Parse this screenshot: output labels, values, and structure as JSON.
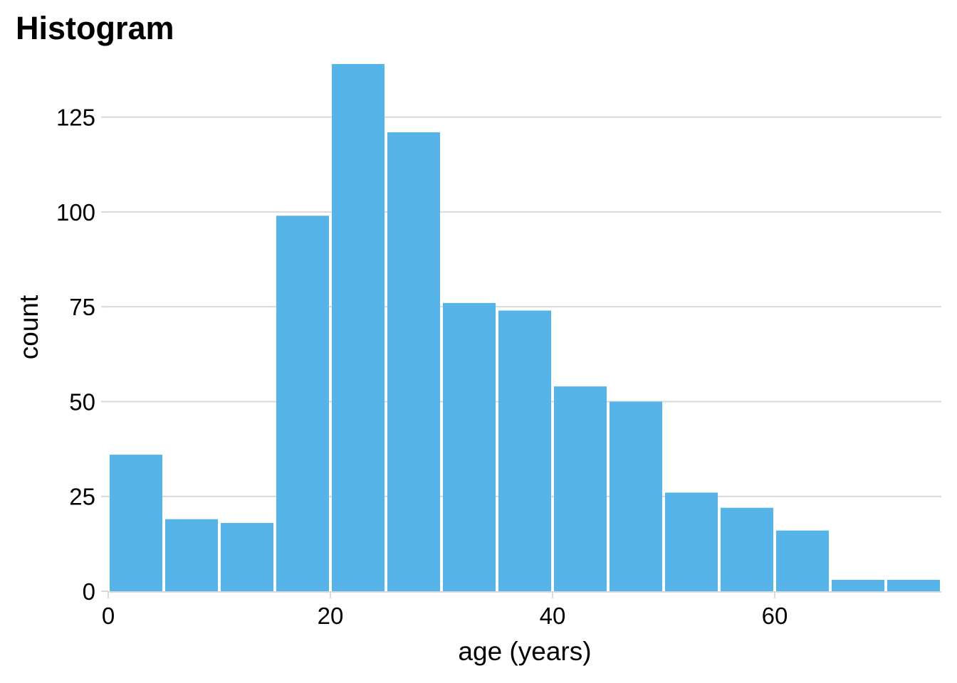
{
  "chart_data": {
    "type": "bar",
    "title": "Histogram",
    "xlabel": "age (years)",
    "ylabel": "count",
    "bin_width": 5,
    "bins": [
      {
        "x0": 0,
        "x1": 5,
        "count": 36
      },
      {
        "x0": 5,
        "x1": 10,
        "count": 19
      },
      {
        "x0": 10,
        "x1": 15,
        "count": 18
      },
      {
        "x0": 15,
        "x1": 20,
        "count": 99
      },
      {
        "x0": 20,
        "x1": 25,
        "count": 139
      },
      {
        "x0": 25,
        "x1": 30,
        "count": 121
      },
      {
        "x0": 30,
        "x1": 35,
        "count": 76
      },
      {
        "x0": 35,
        "x1": 40,
        "count": 74
      },
      {
        "x0": 40,
        "x1": 45,
        "count": 54
      },
      {
        "x0": 45,
        "x1": 50,
        "count": 50
      },
      {
        "x0": 50,
        "x1": 55,
        "count": 26
      },
      {
        "x0": 55,
        "x1": 60,
        "count": 22
      },
      {
        "x0": 60,
        "x1": 65,
        "count": 16
      },
      {
        "x0": 65,
        "x1": 70,
        "count": 3
      },
      {
        "x0": 70,
        "x1": 75,
        "count": 3
      }
    ],
    "xlim": [
      0,
      75
    ],
    "ylim": [
      0,
      139
    ],
    "x_ticks": [
      0,
      20,
      40,
      60
    ],
    "y_ticks": [
      0,
      25,
      50,
      75,
      100,
      125
    ],
    "grid": true,
    "bar_color": "#56b4e9",
    "grid_color": "#d9d9d9"
  }
}
